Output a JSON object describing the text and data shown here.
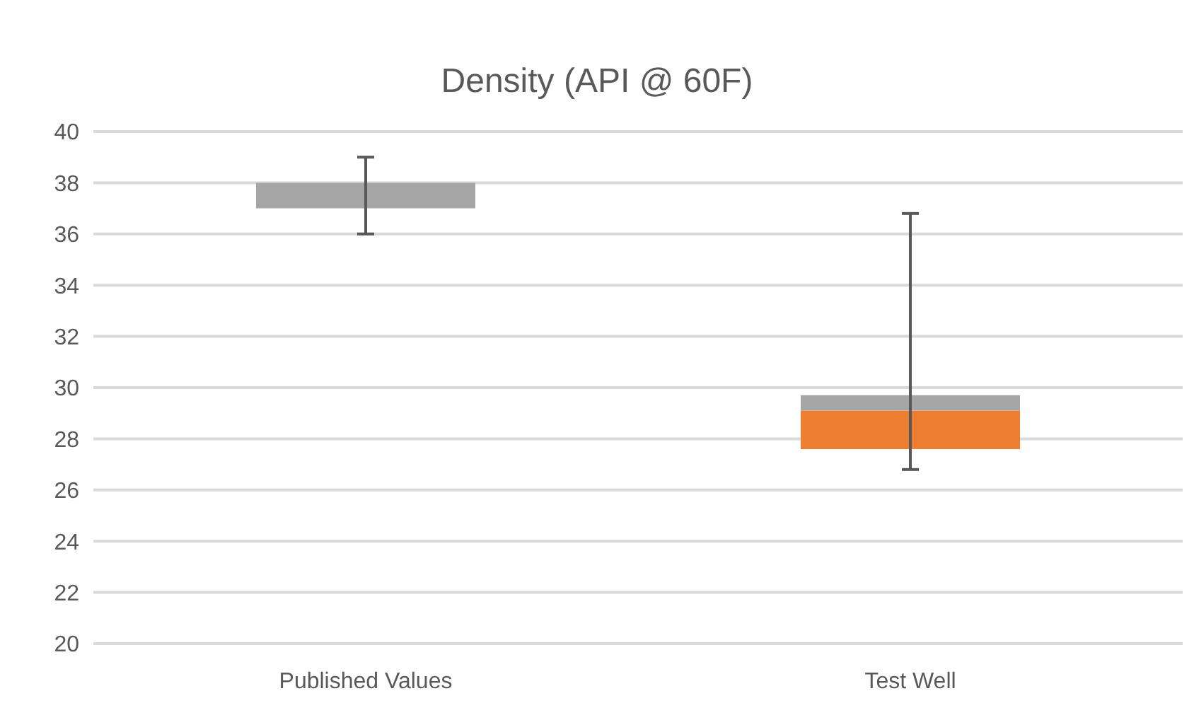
{
  "chart_data": {
    "type": "box",
    "title": "Density (API @ 60F)",
    "categories": [
      "Published Values",
      "Test Well"
    ],
    "colors": [
      "#a5a5a5",
      "#ed7d31"
    ],
    "color": "#a5a5a5",
    "boxes": [
      {
        "low": 36,
        "q1": 37,
        "median": 37,
        "q3": 38,
        "high": 39
      },
      {
        "low": 26.8,
        "q1": 27.6,
        "median": 29.1,
        "q3": 29.7,
        "high": 36.8
      }
    ],
    "ylim": [
      20,
      40
    ],
    "yticks": [
      20,
      22,
      24,
      26,
      28,
      30,
      32,
      34,
      36,
      38,
      40
    ],
    "grid": "y",
    "legend": false
  }
}
